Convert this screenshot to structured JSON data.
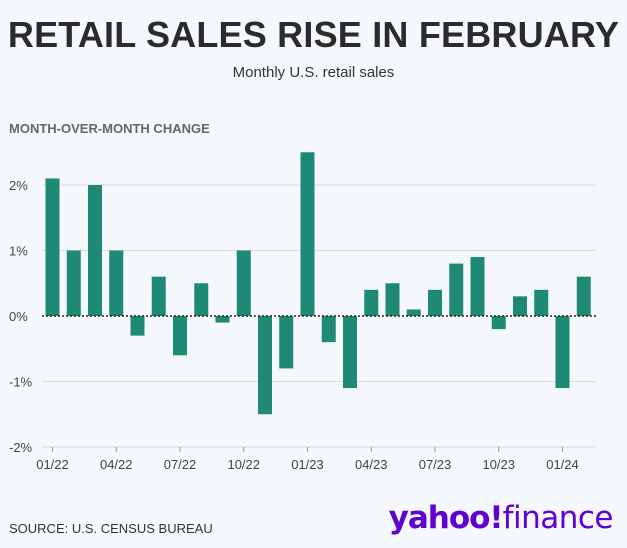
{
  "title": "RETAIL SALES RISE IN FEBRUARY",
  "subtitle": "Monthly U.S. retail sales",
  "source": "SOURCE: U.S. CENSUS BUREAU",
  "logo": {
    "brand": "yahoo",
    "mark": "!",
    "product": "finance"
  },
  "colors": {
    "bar": "#1e8a76",
    "grid": "#d6dbe0",
    "logo": "#6001d2"
  },
  "chart_data": {
    "type": "bar",
    "ylabel": "MONTH-OVER-MONTH CHANGE",
    "ylim": [
      -2,
      2.5
    ],
    "yticks": [
      -2,
      -1,
      0,
      1,
      2
    ],
    "ytick_labels": [
      "-2%",
      "-1%",
      "0%",
      "1%",
      "2%"
    ],
    "xtick_labels": [
      "01/22",
      "04/22",
      "07/22",
      "10/22",
      "01/23",
      "04/23",
      "07/23",
      "10/23",
      "01/24"
    ],
    "xtick_indices": [
      0,
      3,
      6,
      9,
      12,
      15,
      18,
      21,
      24
    ],
    "grid": true,
    "categories": [
      "01/22",
      "02/22",
      "03/22",
      "04/22",
      "05/22",
      "06/22",
      "07/22",
      "08/22",
      "09/22",
      "10/22",
      "11/22",
      "12/22",
      "01/23",
      "02/23",
      "03/23",
      "04/23",
      "05/23",
      "06/23",
      "07/23",
      "08/23",
      "09/23",
      "10/23",
      "11/23",
      "12/23",
      "01/24",
      "02/24"
    ],
    "values": [
      2.1,
      1.0,
      2.0,
      1.0,
      -0.3,
      0.6,
      -0.6,
      0.5,
      -0.1,
      1.0,
      -1.5,
      -0.8,
      2.5,
      -0.4,
      -1.1,
      0.4,
      0.5,
      0.1,
      0.4,
      0.8,
      0.9,
      -0.2,
      0.3,
      0.4,
      -1.1,
      0.6
    ]
  }
}
